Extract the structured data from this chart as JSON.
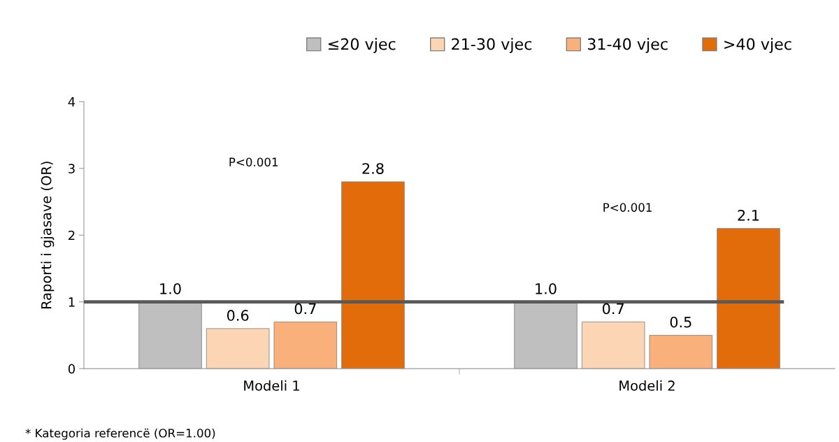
{
  "chart_data": {
    "type": "bar",
    "ylabel": "Raporti i gjasave (OR)",
    "categories": [
      "Modeli 1",
      "Modeli 2"
    ],
    "series": [
      {
        "name": "≤20 vjec",
        "color": "#bfbfbf",
        "values": [
          1.0,
          1.0
        ],
        "value_labels": [
          "1.0",
          "1.0"
        ]
      },
      {
        "name": "21-30 vjec",
        "color": "#fcd5b5",
        "values": [
          0.6,
          0.7
        ],
        "value_labels": [
          "0.6",
          "0.7"
        ]
      },
      {
        "name": "31-40 vjec",
        "color": "#fab07a",
        "values": [
          0.7,
          0.5
        ],
        "value_labels": [
          "0.7",
          "0.5"
        ]
      },
      {
        "name": ">40 vjec",
        "color": "#e36c0a",
        "values": [
          2.8,
          2.1
        ],
        "value_labels": [
          "2.8",
          "2.1"
        ]
      }
    ],
    "ylim": [
      0,
      4
    ],
    "yticks": [
      0,
      1,
      2,
      3,
      4
    ],
    "ref_lines": [
      {
        "axis": "y",
        "value": 1,
        "color": "#595959"
      }
    ],
    "annotations": [
      "P<0.001",
      "P<0.001",
      "* Kategoria referencë (OR=1.00)"
    ],
    "legend": "top",
    "grid": false
  }
}
